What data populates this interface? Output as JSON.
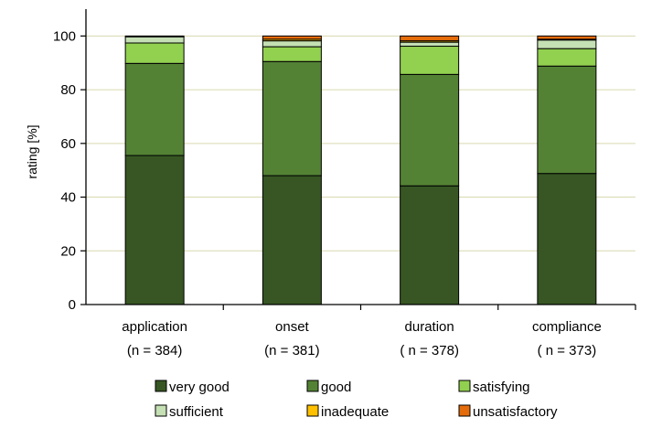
{
  "chart_data": {
    "type": "bar",
    "stacked": true,
    "categories": [
      "application",
      "onset",
      "duration",
      "compliance"
    ],
    "category_notes": [
      "(n = 384)",
      "(n = 381)",
      "( n = 378)",
      "( n = 373)"
    ],
    "ylabel": "rating [%]",
    "xlabel": "",
    "ylim": [
      0,
      110
    ],
    "yticks": [
      0,
      20,
      40,
      60,
      80,
      100
    ],
    "grid": true,
    "legend_position": "bottom",
    "series": [
      {
        "name": "very good",
        "color": "#375623",
        "values": [
          55.5,
          48.0,
          44.2,
          48.8
        ]
      },
      {
        "name": "good",
        "color": "#548235",
        "values": [
          34.3,
          42.5,
          41.5,
          40.0
        ]
      },
      {
        "name": "satisfying",
        "color": "#92D050",
        "values": [
          7.6,
          5.5,
          10.5,
          6.5
        ]
      },
      {
        "name": "sufficient",
        "color": "#C5E0B4",
        "values": [
          2.3,
          2.2,
          1.5,
          3.2
        ]
      },
      {
        "name": "inadequate",
        "color": "#FFC000",
        "values": [
          0.0,
          0.6,
          0.5,
          0.3
        ]
      },
      {
        "name": "unsatisfactory",
        "color": "#E46C0A",
        "values": [
          0.3,
          1.2,
          1.8,
          1.2
        ]
      }
    ]
  }
}
